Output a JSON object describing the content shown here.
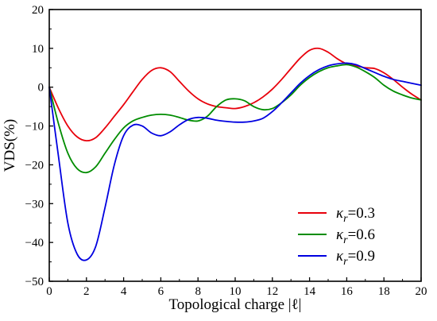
{
  "chart_data": {
    "type": "line",
    "title": "",
    "xlabel": "Topological charge |ℓ|",
    "ylabel": "VDS(%)",
    "xlim": [
      0,
      20
    ],
    "ylim": [
      -50,
      20
    ],
    "xticks": [
      0,
      2,
      4,
      6,
      8,
      10,
      12,
      14,
      16,
      18,
      20
    ],
    "yticks": [
      20,
      10,
      0,
      -10,
      -20,
      -30,
      -40,
      -50
    ],
    "xtick_labels": [
      "0",
      "2",
      "4",
      "6",
      "8",
      "10",
      "12",
      "14",
      "16",
      "18",
      "20"
    ],
    "ytick_labels": [
      "20",
      "10",
      "0",
      "−10",
      "−20",
      "−30",
      "−40",
      "−50"
    ],
    "grid": false,
    "legend_position": "bottom-right",
    "series": [
      {
        "name": "κr=0.3",
        "legend_symbol": "κ",
        "legend_subscript": "r",
        "legend_value": "=0.3",
        "color": "#e8000b",
        "x": [
          0,
          0.5,
          1,
          1.5,
          2,
          2.5,
          3,
          3.5,
          4,
          4.5,
          5,
          5.5,
          6,
          6.5,
          7,
          7.5,
          8,
          8.5,
          9,
          9.5,
          10,
          10.5,
          11,
          11.5,
          12,
          12.5,
          13,
          13.5,
          14,
          14.5,
          15,
          15.5,
          16,
          16.5,
          17,
          17.5,
          18,
          18.5,
          19,
          19.5,
          20
        ],
        "y": [
          0,
          -5.5,
          -10,
          -12.8,
          -13.8,
          -13,
          -10.5,
          -7.5,
          -4.5,
          -1.2,
          2,
          4.3,
          5,
          4,
          1.5,
          -1,
          -3,
          -4.3,
          -5,
          -5.3,
          -5.5,
          -5,
          -4,
          -2.5,
          -0.5,
          2,
          4.8,
          7.5,
          9.5,
          10,
          9,
          7.3,
          6,
          5.5,
          5,
          4.8,
          3.7,
          2,
          0,
          -1.8,
          -3.3
        ]
      },
      {
        "name": "κr=0.6",
        "legend_symbol": "κ",
        "legend_subscript": "r",
        "legend_value": "=0.6",
        "color": "#008c00",
        "x": [
          0,
          0.5,
          1,
          1.5,
          2,
          2.5,
          3,
          3.5,
          4,
          4.5,
          5,
          5.5,
          6,
          6.5,
          7,
          7.5,
          8,
          8.5,
          9,
          9.5,
          10,
          10.5,
          11,
          11.5,
          12,
          12.5,
          13,
          13.5,
          14,
          14.5,
          15,
          15.5,
          16,
          16.5,
          17,
          17.5,
          18,
          18.5,
          19,
          19.5,
          20
        ],
        "y": [
          0,
          -9.5,
          -17,
          -21,
          -22,
          -20.5,
          -17,
          -13.5,
          -10.5,
          -8.7,
          -7.8,
          -7.2,
          -7,
          -7.2,
          -7.8,
          -8.5,
          -8.7,
          -7.5,
          -5,
          -3.3,
          -3,
          -3.5,
          -5,
          -5.8,
          -5.5,
          -4,
          -2,
          0.5,
          2.5,
          4,
          5,
          5.5,
          5.8,
          5.2,
          4,
          2.5,
          0.5,
          -1,
          -2,
          -2.8,
          -3.3
        ]
      },
      {
        "name": "κr=0.9",
        "legend_symbol": "κ",
        "legend_subscript": "r",
        "legend_value": "=0.9",
        "color": "#0000e0",
        "x": [
          0,
          0.5,
          1,
          1.5,
          2,
          2.5,
          3,
          3.5,
          4,
          4.5,
          5,
          5.5,
          6,
          6.5,
          7,
          7.5,
          8,
          8.5,
          9,
          9.5,
          10,
          10.5,
          11,
          11.5,
          12,
          12.5,
          13,
          13.5,
          14,
          14.5,
          15,
          15.5,
          16,
          16.5,
          17,
          17.5,
          18,
          18.5,
          19,
          19.5,
          20
        ],
        "y": [
          0,
          -18,
          -35,
          -43,
          -44.5,
          -41,
          -31,
          -20,
          -12.5,
          -9.8,
          -10,
          -11.8,
          -12.5,
          -11.5,
          -9.7,
          -8.3,
          -7.8,
          -8,
          -8.5,
          -8.8,
          -9,
          -9,
          -8.7,
          -8,
          -6.3,
          -4,
          -1.5,
          1,
          3,
          4.5,
          5.5,
          6,
          6.2,
          5.8,
          4.8,
          3.8,
          2.8,
          2,
          1.5,
          1,
          0.5
        ]
      }
    ]
  }
}
